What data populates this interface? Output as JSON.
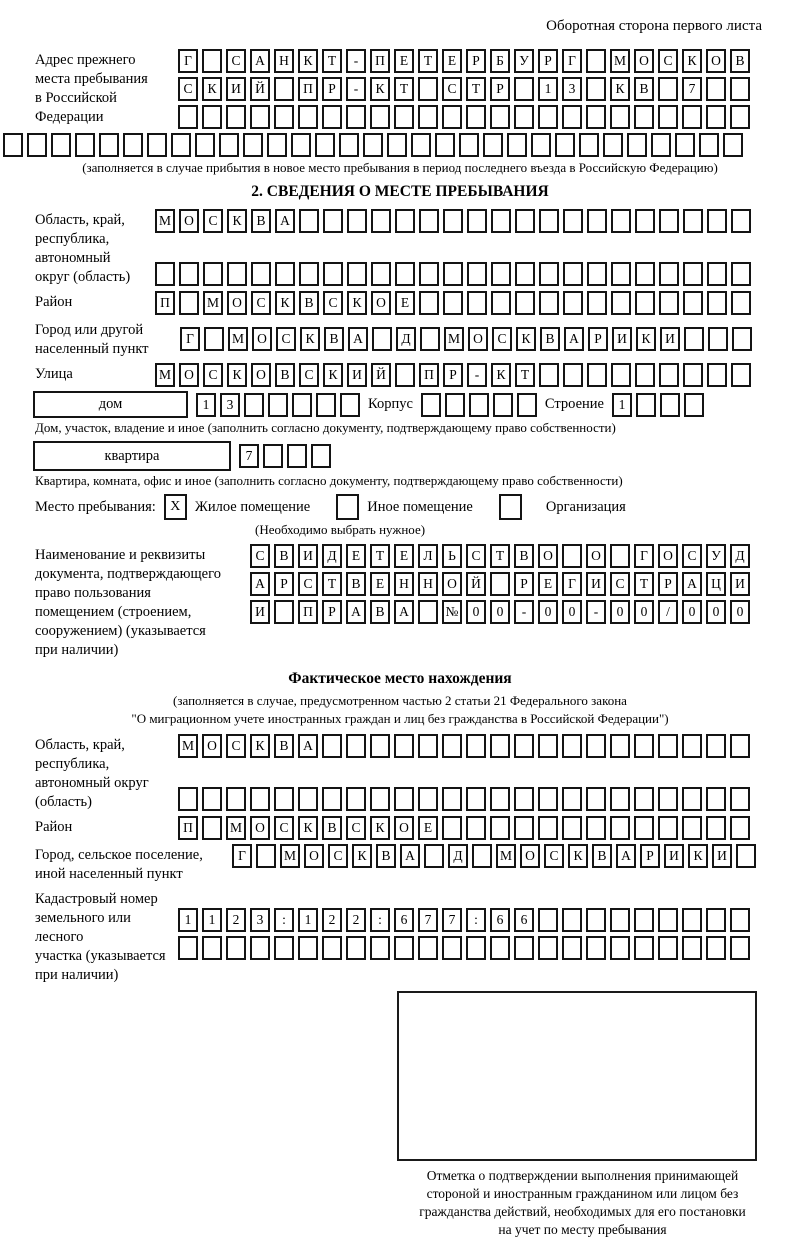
{
  "header": {
    "title": "Оборотная сторона первого листа"
  },
  "prev_address": {
    "label_lines": [
      "Адрес прежнего",
      "места пребывания",
      "в Российской",
      "Федерации"
    ],
    "row1": [
      "Г",
      "",
      "С",
      "А",
      "Н",
      "К",
      "Т",
      "-",
      "П",
      "Е",
      "Т",
      "Е",
      "Р",
      "Б",
      "У",
      "Р",
      "Г",
      "",
      "М",
      "О",
      "С",
      "К",
      "О",
      "В"
    ],
    "row2": [
      "С",
      "К",
      "И",
      "Й",
      "",
      "П",
      "Р",
      "-",
      "К",
      "Т",
      "",
      "С",
      "Т",
      "Р",
      "",
      "1",
      "3",
      "",
      "К",
      "В",
      "",
      "7",
      "",
      ""
    ],
    "row3": 24,
    "full_row": 31,
    "note": "(заполняется в случае прибытия в новое место пребывания в период последнего въезда в Российскую Федерацию)"
  },
  "section2": {
    "title": "2. СВЕДЕНИЯ О МЕСТЕ ПРЕБЫВАНИЯ",
    "region": {
      "label_lines": [
        "Область, край,",
        "республика,",
        "автономный",
        "округ (область)"
      ],
      "row1": [
        "М",
        "О",
        "С",
        "К",
        "В",
        "А",
        "",
        "",
        "",
        "",
        "",
        "",
        "",
        "",
        "",
        "",
        "",
        "",
        "",
        "",
        "",
        "",
        "",
        "",
        ""
      ],
      "row2": 25
    },
    "district": {
      "label": "Район",
      "cells": [
        "П",
        "",
        "М",
        "О",
        "С",
        "К",
        "В",
        "С",
        "К",
        "О",
        "Е",
        "",
        "",
        "",
        "",
        "",
        "",
        "",
        "",
        "",
        "",
        "",
        "",
        "",
        ""
      ]
    },
    "city": {
      "label_lines": [
        "Город или другой",
        "населенный пункт"
      ],
      "cells": [
        "Г",
        "",
        "М",
        "О",
        "С",
        "К",
        "В",
        "А",
        "",
        "Д",
        "",
        "М",
        "О",
        "С",
        "К",
        "В",
        "А",
        "Р",
        "И",
        "К",
        "И",
        "",
        "",
        ""
      ]
    },
    "street": {
      "label": "Улица",
      "cells": [
        "М",
        "О",
        "С",
        "К",
        "О",
        "В",
        "С",
        "К",
        "И",
        "Й",
        "",
        "П",
        "Р",
        "-",
        "К",
        "Т",
        "",
        "",
        "",
        "",
        "",
        "",
        "",
        "",
        ""
      ]
    },
    "house_row": {
      "house_label": "дом",
      "house_cells": [
        "1",
        "3",
        "",
        "",
        "",
        "",
        ""
      ],
      "korpus_label": "Корпус",
      "korpus_cells": 5,
      "stroenie_label": "Строение",
      "stroenie_cells": [
        "1",
        "",
        "",
        ""
      ]
    },
    "house_note": "Дом, участок, владение и иное (заполнить согласно документу, подтверждающему право собственности)",
    "apartment_row": {
      "label": "квартира",
      "cells": [
        "7",
        "",
        "",
        ""
      ]
    },
    "apartment_note": "Квартира, комната, офис и иное (заполнить согласно документу, подтверждающему право собственности)",
    "stay_type": {
      "label": "Место пребывания:",
      "options": [
        {
          "label": "Жилое помещение",
          "mark": "X"
        },
        {
          "label": "Иное помещение",
          "mark": ""
        },
        {
          "label": "Организация",
          "mark": ""
        }
      ],
      "note": "(Необходимо выбрать нужное)"
    },
    "document": {
      "label_lines": [
        "Наименование и реквизиты",
        "документа, подтверждающего",
        "право пользования",
        "помещением (строением,",
        "сооружением) (указывается",
        "при наличии)"
      ],
      "row1": [
        "С",
        "В",
        "И",
        "Д",
        "Е",
        "Т",
        "Е",
        "Л",
        "Ь",
        "С",
        "Т",
        "В",
        "О",
        "",
        "О",
        "",
        "Г",
        "О",
        "С",
        "У",
        "Д"
      ],
      "row2": [
        "А",
        "Р",
        "С",
        "Т",
        "В",
        "Е",
        "Н",
        "Н",
        "О",
        "Й",
        "",
        "Р",
        "Е",
        "Г",
        "И",
        "С",
        "Т",
        "Р",
        "А",
        "Ц",
        "И"
      ],
      "row3": [
        "И",
        "",
        "П",
        "Р",
        "А",
        "В",
        "А",
        "",
        "№",
        "0",
        "0",
        "-",
        "0",
        "0",
        "-",
        "0",
        "0",
        "/",
        "0",
        "0",
        "0"
      ]
    }
  },
  "actual_location": {
    "title": "Фактическое место нахождения",
    "note_lines": [
      "(заполняется в случае, предусмотренном частью 2 статьи 21 Федерального закона",
      "\"О миграционном учете иностранных граждан и лиц без гражданства в Российской Федерации\")"
    ],
    "region": {
      "label_lines": [
        "Область, край,",
        "республика,",
        "автономный округ",
        "(область)"
      ],
      "row1": [
        "М",
        "О",
        "С",
        "К",
        "В",
        "А",
        "",
        "",
        "",
        "",
        "",
        "",
        "",
        "",
        "",
        "",
        "",
        "",
        "",
        "",
        "",
        "",
        "",
        ""
      ],
      "row2": 24
    },
    "district": {
      "label": "Район",
      "cells": [
        "П",
        "",
        "М",
        "О",
        "С",
        "К",
        "В",
        "С",
        "К",
        "О",
        "Е",
        "",
        "",
        "",
        "",
        "",
        "",
        "",
        "",
        "",
        "",
        "",
        "",
        ""
      ]
    },
    "city": {
      "label_lines": [
        "Город, сельское поселение,",
        "иной населенный пункт"
      ],
      "cells": [
        "Г",
        "",
        "М",
        "О",
        "С",
        "К",
        "В",
        "А",
        "",
        "Д",
        "",
        "М",
        "О",
        "С",
        "К",
        "В",
        "А",
        "Р",
        "И",
        "К",
        "И",
        ""
      ]
    },
    "cadastral": {
      "label_lines": [
        "Кадастровый номер",
        "земельного или лесного",
        "участка (указывается",
        "при наличии)"
      ],
      "row1": [
        "1",
        "1",
        "2",
        "3",
        ":",
        "1",
        "2",
        "2",
        ":",
        "6",
        "7",
        "7",
        ":",
        "6",
        "6",
        "",
        "",
        "",
        "",
        "",
        "",
        "",
        "",
        ""
      ],
      "row2": 24
    },
    "stamp_caption_lines": [
      "Отметка о подтверждении выполнения принимающей",
      "стороной и иностранным гражданином или лицом без",
      "гражданства действий, необходимых для его постановки",
      "на учет по месту пребывания"
    ]
  }
}
